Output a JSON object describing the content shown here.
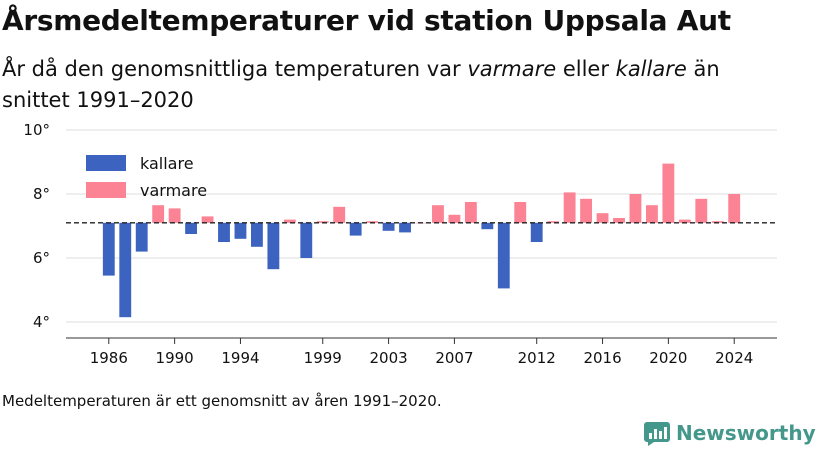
{
  "title": "Årsmedeltemperaturer vid station Uppsala Aut",
  "subtitle": {
    "part1": "År då den genomsnittliga temperaturen var ",
    "em1": "varmare",
    "part2": " eller ",
    "em2": "kallare",
    "part3": " än snittet 1991–2020"
  },
  "footnote": "Medeltemperaturen är ett genomsnitt av åren 1991–2020.",
  "brand": {
    "name": "Newsworthy",
    "color": "#43978b"
  },
  "chart_data": {
    "type": "bar",
    "baseline": 7.1,
    "ylim": [
      3.5,
      10
    ],
    "yticks": [
      4,
      6,
      8,
      10
    ],
    "ytick_labels": [
      "4°",
      "6°",
      "8°",
      "10°"
    ],
    "xlim": [
      1983.4,
      2026.6
    ],
    "xticks": [
      1986,
      1990,
      1994,
      1999,
      2003,
      2007,
      2012,
      2016,
      2020,
      2024
    ],
    "xtick_labels": [
      "1986",
      "1990",
      "1994",
      "1999",
      "2003",
      "2007",
      "2012",
      "2016",
      "2020",
      "2024"
    ],
    "grid": true,
    "legend_position": "top-left",
    "colors": {
      "kallare": "#3c63c0",
      "varmare": "#fb8394",
      "baseline": "#222222",
      "grid": "#dddddd"
    },
    "series": [
      {
        "name": "kallare",
        "color": "#3c63c0"
      },
      {
        "name": "varmare",
        "color": "#fb8394"
      }
    ],
    "years": [
      1986,
      1987,
      1988,
      1989,
      1990,
      1991,
      1992,
      1993,
      1994,
      1995,
      1996,
      1997,
      1998,
      1999,
      2000,
      2001,
      2002,
      2003,
      2004,
      2005,
      2006,
      2007,
      2008,
      2009,
      2010,
      2011,
      2012,
      2013,
      2014,
      2015,
      2016,
      2017,
      2018,
      2019,
      2020,
      2021,
      2022,
      2023,
      2024
    ],
    "values": [
      5.45,
      4.15,
      6.2,
      7.65,
      7.55,
      6.75,
      7.3,
      6.5,
      6.6,
      6.35,
      5.65,
      7.2,
      6.0,
      7.15,
      7.6,
      6.7,
      7.15,
      6.85,
      6.8,
      7.1,
      7.65,
      7.35,
      7.75,
      6.9,
      5.05,
      7.75,
      6.5,
      7.15,
      8.05,
      7.85,
      7.4,
      7.25,
      8.0,
      7.65,
      8.95,
      7.2,
      7.85,
      7.15,
      8.0
    ]
  }
}
